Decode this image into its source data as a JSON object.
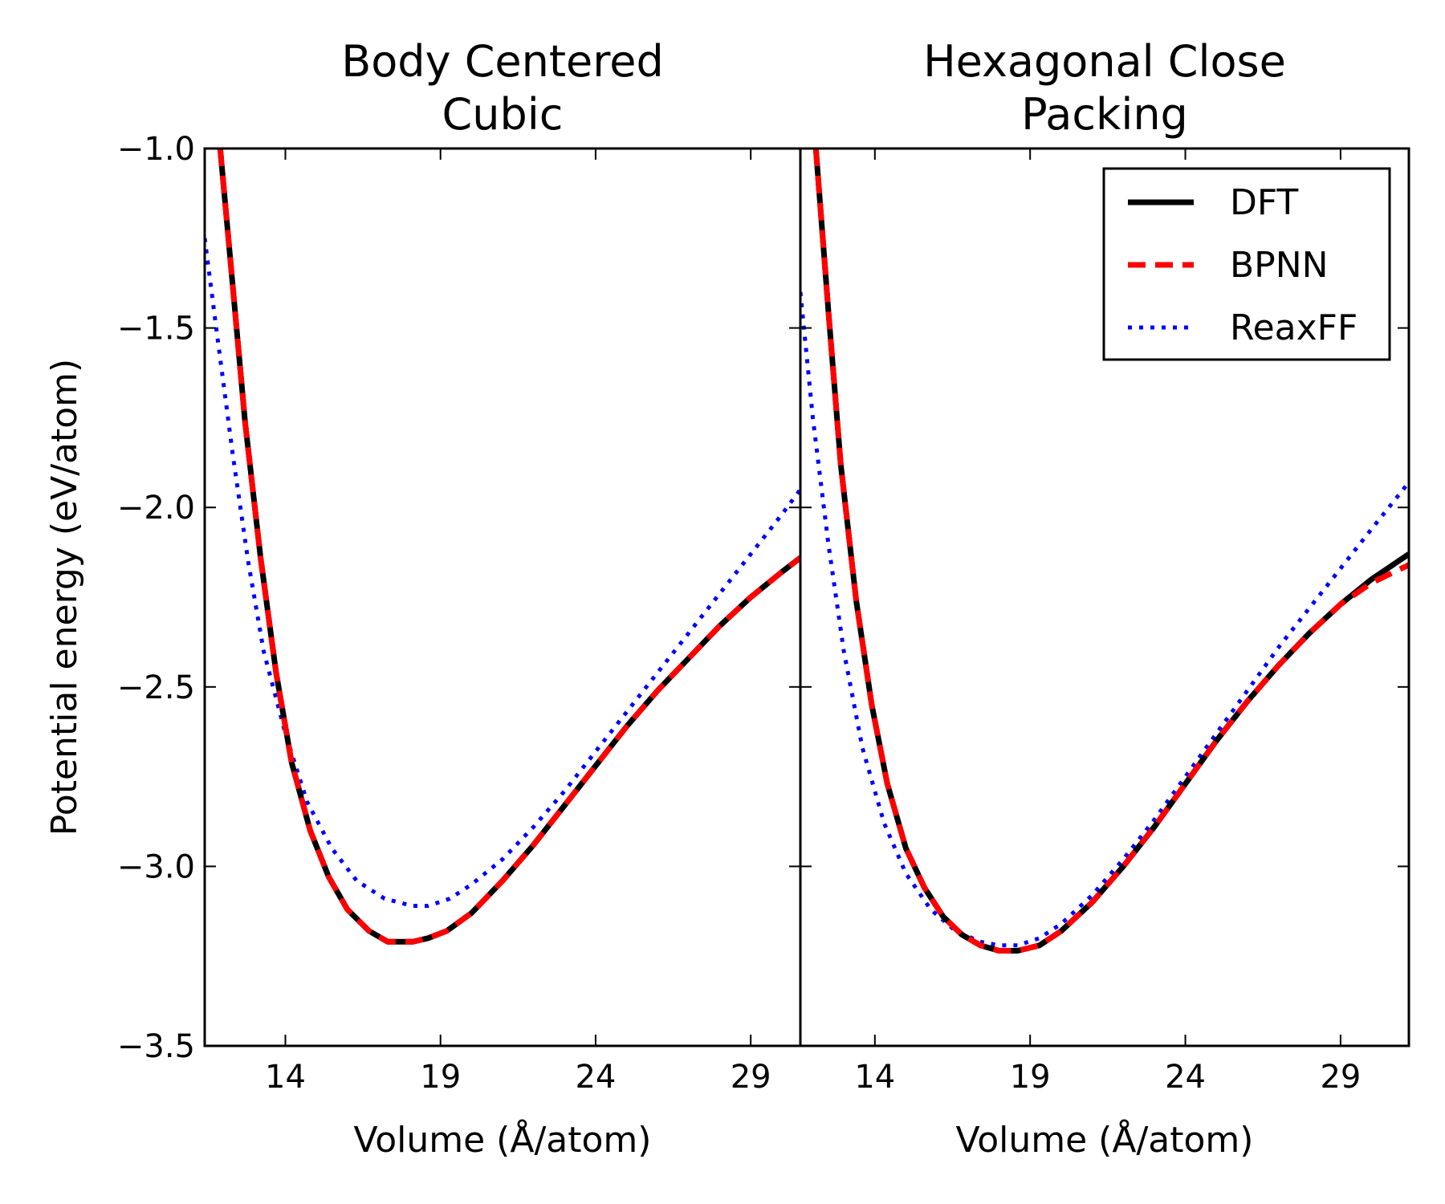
{
  "chart_data": {
    "type": "line",
    "ylabel": "Potential energy (eV/atom)",
    "ylim": [
      -3.5,
      -1.0
    ],
    "yticks": [
      -1.0,
      -1.5,
      -2.0,
      -2.5,
      -3.0,
      -3.5
    ],
    "ytick_labels": [
      "−1.0",
      "−1.5",
      "−2.0",
      "−2.5",
      "−3.0",
      "−3.5"
    ],
    "legend": {
      "placement": "top-right of right panel",
      "entries": [
        {
          "name": "DFT",
          "color": "#000000",
          "style": "solid"
        },
        {
          "name": "BPNN",
          "color": "#ff0000",
          "style": "dashed"
        },
        {
          "name": "ReaxFF",
          "color": "#0000ff",
          "style": "dotted"
        }
      ]
    },
    "panels": [
      {
        "title_lines": [
          "Body Centered",
          "Cubic"
        ],
        "xlabel": "Volume (Å/atom)",
        "xlim": [
          11.4,
          30.6
        ],
        "xticks": [
          14,
          19,
          24,
          29
        ],
        "series": [
          {
            "name": "DFT",
            "color": "#000000",
            "style": "solid",
            "x": [
              11.9,
              12.3,
              12.7,
              13.2,
              13.7,
              14.2,
              14.8,
              15.4,
              16.0,
              16.7,
              17.3,
              18.1,
              18.6,
              19.2,
              20.0,
              21.0,
              22.0,
              23.0,
              24.0,
              25.0,
              26.0,
              27.0,
              28.0,
              29.0,
              30.0,
              30.6
            ],
            "y": [
              -1.0,
              -1.38,
              -1.76,
              -2.14,
              -2.46,
              -2.71,
              -2.9,
              -3.03,
              -3.12,
              -3.18,
              -3.21,
              -3.21,
              -3.2,
              -3.18,
              -3.13,
              -3.04,
              -2.94,
              -2.83,
              -2.72,
              -2.61,
              -2.51,
              -2.42,
              -2.33,
              -2.25,
              -2.18,
              -2.14
            ]
          },
          {
            "name": "BPNN",
            "color": "#ff0000",
            "style": "dashed",
            "x": [
              11.9,
              12.3,
              12.7,
              13.2,
              13.7,
              14.2,
              14.8,
              15.4,
              16.0,
              16.7,
              17.3,
              18.1,
              18.6,
              19.2,
              20.0,
              21.0,
              22.0,
              23.0,
              24.0,
              25.0,
              26.0,
              27.0,
              28.0,
              29.0,
              30.0,
              30.6
            ],
            "y": [
              -1.0,
              -1.38,
              -1.76,
              -2.14,
              -2.46,
              -2.71,
              -2.9,
              -3.03,
              -3.12,
              -3.18,
              -3.21,
              -3.21,
              -3.2,
              -3.18,
              -3.13,
              -3.04,
              -2.94,
              -2.83,
              -2.72,
              -2.61,
              -2.51,
              -2.42,
              -2.33,
              -2.25,
              -2.18,
              -2.14
            ]
          },
          {
            "name": "ReaxFF",
            "color": "#0000ff",
            "style": "dotted",
            "x": [
              11.4,
              11.8,
              12.3,
              12.8,
              13.3,
              14.0,
              14.7,
              15.5,
              16.3,
              17.2,
              18.1,
              18.6,
              19.3,
              20.0,
              21.0,
              22.0,
              23.0,
              24.0,
              25.0,
              26.0,
              27.0,
              28.0,
              29.0,
              30.0,
              30.6
            ],
            "y": [
              -1.25,
              -1.52,
              -1.85,
              -2.15,
              -2.4,
              -2.63,
              -2.82,
              -2.95,
              -3.04,
              -3.09,
              -3.11,
              -3.11,
              -3.09,
              -3.05,
              -2.98,
              -2.89,
              -2.79,
              -2.68,
              -2.57,
              -2.46,
              -2.35,
              -2.24,
              -2.13,
              -2.02,
              -1.95
            ]
          }
        ]
      },
      {
        "title_lines": [
          "Hexagonal Close",
          "Packing"
        ],
        "xlabel": "Volume (Å/atom)",
        "xlim": [
          11.6,
          31.2
        ],
        "xticks": [
          14,
          19,
          24,
          29
        ],
        "series": [
          {
            "name": "DFT",
            "color": "#000000",
            "style": "solid",
            "x": [
              12.1,
              12.5,
              12.9,
              13.4,
              13.9,
              14.4,
              15.0,
              15.6,
              16.2,
              16.8,
              17.4,
              18.0,
              18.6,
              19.3,
              20.0,
              21.0,
              22.0,
              23.0,
              24.0,
              25.0,
              26.0,
              27.0,
              28.0,
              29.0,
              30.0,
              31.2
            ],
            "y": [
              -1.0,
              -1.45,
              -1.88,
              -2.26,
              -2.55,
              -2.77,
              -2.95,
              -3.06,
              -3.14,
              -3.19,
              -3.22,
              -3.235,
              -3.235,
              -3.22,
              -3.18,
              -3.1,
              -3.0,
              -2.89,
              -2.77,
              -2.65,
              -2.54,
              -2.44,
              -2.35,
              -2.27,
              -2.2,
              -2.13
            ]
          },
          {
            "name": "BPNN",
            "color": "#ff0000",
            "style": "dashed",
            "x": [
              12.1,
              12.5,
              12.9,
              13.4,
              13.9,
              14.4,
              15.0,
              15.6,
              16.2,
              16.8,
              17.4,
              18.0,
              18.6,
              19.3,
              20.0,
              21.0,
              22.0,
              23.0,
              24.0,
              25.0,
              26.0,
              27.0,
              28.0,
              29.0,
              30.0,
              31.2
            ],
            "y": [
              -1.0,
              -1.45,
              -1.88,
              -2.26,
              -2.55,
              -2.77,
              -2.95,
              -3.06,
              -3.14,
              -3.19,
              -3.22,
              -3.235,
              -3.235,
              -3.22,
              -3.18,
              -3.1,
              -3.0,
              -2.89,
              -2.77,
              -2.65,
              -2.54,
              -2.44,
              -2.35,
              -2.27,
              -2.21,
              -2.16
            ]
          },
          {
            "name": "ReaxFF",
            "color": "#0000ff",
            "style": "dotted",
            "x": [
              11.6,
              12.0,
              12.5,
              13.0,
              13.6,
              14.3,
              15.0,
              15.8,
              16.6,
              17.4,
              18.0,
              18.6,
              19.3,
              20.0,
              21.0,
              22.0,
              23.0,
              24.0,
              25.0,
              26.0,
              27.0,
              28.0,
              29.0,
              30.0,
              31.2
            ],
            "y": [
              -1.4,
              -1.75,
              -2.1,
              -2.4,
              -2.67,
              -2.88,
              -3.02,
              -3.12,
              -3.18,
              -3.21,
              -3.22,
              -3.22,
              -3.2,
              -3.16,
              -3.08,
              -2.98,
              -2.87,
              -2.75,
              -2.63,
              -2.51,
              -2.39,
              -2.28,
              -2.17,
              -2.06,
              -1.93
            ]
          }
        ]
      }
    ]
  }
}
